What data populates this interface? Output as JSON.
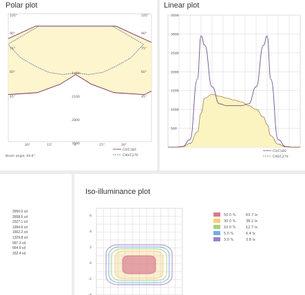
{
  "colors": {
    "grid": "#d4d4d4",
    "curve_c0": "#7a2a55",
    "curve_c90": "#4a5aa8",
    "fill": "#fbf3c0",
    "linear_c0": "#6a4f8a",
    "linear_c90": "#9a6a40"
  },
  "polar": {
    "title": "Polar plot",
    "beam_label": "Beam angle: 64.6°",
    "legend": [
      "C0/C180",
      "C90/C270"
    ],
    "angle_labels_left": [
      "105°",
      "90°",
      "75°",
      "60°",
      "45°"
    ],
    "angle_labels_right": [
      "105°",
      "90°",
      "75°",
      "60°",
      "45°"
    ],
    "bottom_labels": [
      "30°",
      "15°",
      "0°",
      "15°",
      "30°"
    ],
    "radial_labels": [
      "1400",
      "2100",
      "2800",
      "3500"
    ]
  },
  "linear": {
    "title": "Linear plot",
    "legend": [
      "C0/C180",
      "C90/C270"
    ],
    "y_ticks": [
      "3500",
      "3000",
      "2500",
      "2000",
      "1500",
      "1000",
      "500"
    ]
  },
  "cd_values": [
    "2950.0 cd",
    "2658.5 cd",
    "2327.1 cd",
    "1994.6 cd",
    "1662.2 cd",
    "1329.8 cd",
    "997.3 cd",
    "664.9 cd",
    "332.4 cd"
  ],
  "iso": {
    "title": "Iso-illuminance plot",
    "y_ticks": [
      "6",
      "4",
      "2",
      "0",
      "-2",
      "-4"
    ],
    "legend": [
      {
        "pct": "50.0 %",
        "lux": "63.7 lx",
        "color": "#d77a8e"
      },
      {
        "pct": "30.0 %",
        "lux": "38.2 lx",
        "color": "#f2cf7a"
      },
      {
        "pct": "10.0 %",
        "lux": "12.7 lx",
        "color": "#a9d17a"
      },
      {
        "pct": "5.0 %",
        "lux": "6.4 lx",
        "color": "#6fb0e0"
      },
      {
        "pct": "3.0 %",
        "lux": "3.8 lx",
        "color": "#9f7fc4"
      }
    ]
  },
  "chart_data": [
    {
      "type": "line",
      "subtype": "polar",
      "title": "Polar plot",
      "series": [
        {
          "name": "C0/C180",
          "angles_deg": [
            0,
            15,
            30,
            45,
            60,
            75,
            90
          ],
          "values": [
            1450,
            1800,
            2300,
            2900,
            3300,
            3000,
            1200
          ]
        },
        {
          "name": "C90/C270",
          "angles_deg": [
            0,
            15,
            30,
            45,
            60,
            75,
            90
          ],
          "values": [
            1400,
            1500,
            1600,
            1700,
            1900,
            2100,
            1100
          ]
        }
      ],
      "r_ticks": [
        1400,
        2100,
        2800,
        3500
      ]
    },
    {
      "type": "line",
      "title": "Linear plot",
      "x": [
        -90,
        -80,
        -70,
        -60,
        -50,
        -45,
        -40,
        -30,
        -20,
        -10,
        0,
        10,
        20,
        30,
        40,
        45,
        50,
        60,
        70,
        80,
        90
      ],
      "series": [
        {
          "name": "C0/C180",
          "values": [
            0,
            0,
            20,
            200,
            1800,
            2950,
            2700,
            1600,
            1150,
            1100,
            1100,
            1100,
            1150,
            1600,
            2700,
            2950,
            1800,
            200,
            20,
            0,
            0
          ]
        },
        {
          "name": "C90/C270",
          "values": [
            0,
            0,
            10,
            100,
            400,
            900,
            1300,
            1400,
            1350,
            1300,
            1250,
            1200,
            1100,
            1000,
            800,
            600,
            300,
            80,
            10,
            0,
            0
          ]
        }
      ],
      "ylim": [
        0,
        3500
      ]
    },
    {
      "type": "heatmap",
      "subtype": "iso-contour",
      "title": "Iso-illuminance plot",
      "levels": [
        {
          "pct": 50.0,
          "lux": 63.7
        },
        {
          "pct": 30.0,
          "lux": 38.2
        },
        {
          "pct": 10.0,
          "lux": 12.7
        },
        {
          "pct": 5.0,
          "lux": 6.4
        },
        {
          "pct": 3.0,
          "lux": 3.8
        }
      ],
      "ylim": [
        -4,
        6
      ]
    }
  ]
}
